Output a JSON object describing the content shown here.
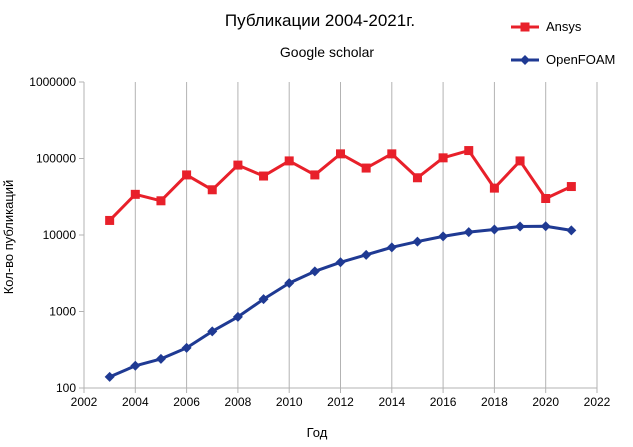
{
  "chart_data": {
    "type": "line",
    "title": "Публикации 2004-2021г.",
    "subtitle": "Google scholar",
    "xlabel": "Год",
    "ylabel": "Кол-во публикаций",
    "xlim": [
      2002,
      2022
    ],
    "ylim": [
      100,
      1000000
    ],
    "yscale": "log",
    "x_ticks": [
      "2002",
      "2004",
      "2006",
      "2008",
      "2010",
      "2012",
      "2014",
      "2016",
      "2018",
      "2020",
      "2022"
    ],
    "y_ticks": [
      "100",
      "1000",
      "10000",
      "100000",
      "1000000"
    ],
    "grid": "vertical",
    "legend_position": "top-right",
    "x": [
      2003,
      2004,
      2005,
      2006,
      2007,
      2008,
      2009,
      2010,
      2011,
      2012,
      2013,
      2014,
      2015,
      2016,
      2017,
      2018,
      2019,
      2020,
      2021
    ],
    "series": [
      {
        "name": "Ansys",
        "color": "#e8202a",
        "marker": "square",
        "values": [
          15500,
          34000,
          28000,
          61000,
          39000,
          82000,
          59000,
          93000,
          61000,
          115000,
          75000,
          115000,
          56000,
          102000,
          127000,
          41000,
          93000,
          30000,
          43000
        ]
      },
      {
        "name": "OpenFOAM",
        "color": "#1f3a93",
        "marker": "diamond",
        "values": [
          140,
          195,
          240,
          335,
          550,
          850,
          1450,
          2350,
          3350,
          4400,
          5500,
          6900,
          8200,
          9600,
          10900,
          11800,
          12900,
          13000,
          11500
        ]
      }
    ]
  }
}
